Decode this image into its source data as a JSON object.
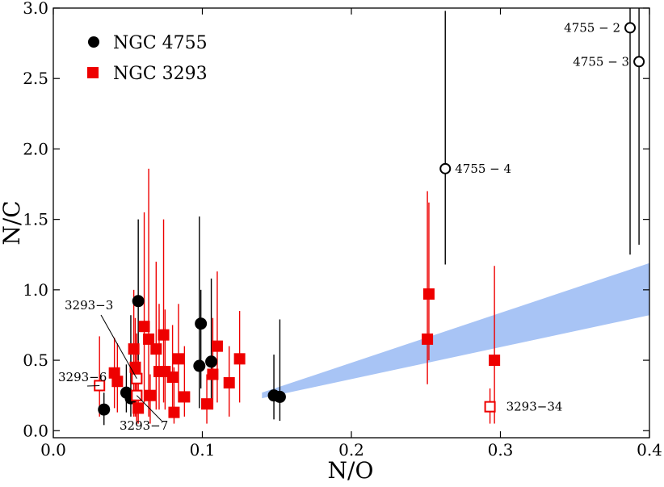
{
  "chart_data": {
    "type": "scatter",
    "xlabel": "N/O",
    "ylabel": "N/C",
    "xlim": [
      0.0,
      0.4
    ],
    "ylim": [
      -0.05,
      3.0
    ],
    "xticks": [
      "0.0",
      "0.1",
      "0.2",
      "0.3",
      "0.4"
    ],
    "yticks": [
      "0.0",
      "0.5",
      "1.0",
      "1.5",
      "2.0",
      "2.5",
      "3.0"
    ],
    "xtick_values": [
      0.0,
      0.1,
      0.2,
      0.3,
      0.4
    ],
    "ytick_values": [
      0.0,
      0.5,
      1.0,
      1.5,
      2.0,
      2.5,
      3.0
    ],
    "grid": false,
    "legend_position": "top-left",
    "band": {
      "color": "#a8c4f5",
      "lower": [
        [
          0.14,
          0.23
        ],
        [
          0.4,
          0.82
        ]
      ],
      "upper": [
        [
          0.14,
          0.27
        ],
        [
          0.4,
          1.19
        ]
      ]
    },
    "series": [
      {
        "name": "NGC 4755",
        "marker": "circle",
        "color": "#000000",
        "points": [
          {
            "x": 0.034,
            "y": 0.15,
            "ylo": 0.04,
            "yhi": 0.27
          },
          {
            "x": 0.049,
            "y": 0.27,
            "ylo": 0.13,
            "yhi": 0.47
          },
          {
            "x": 0.052,
            "y": 0.23,
            "ylo": 0.1,
            "yhi": 0.82
          },
          {
            "x": 0.057,
            "y": 0.92,
            "ylo": 0.35,
            "yhi": 1.5
          },
          {
            "x": 0.098,
            "y": 0.46,
            "ylo": 0.16,
            "yhi": 1.52
          },
          {
            "x": 0.099,
            "y": 0.76,
            "ylo": 0.3,
            "yhi": 1.0
          },
          {
            "x": 0.106,
            "y": 0.49,
            "ylo": 0.22,
            "yhi": 1.08
          },
          {
            "x": 0.148,
            "y": 0.25,
            "ylo": 0.08,
            "yhi": 0.54
          },
          {
            "x": 0.152,
            "y": 0.24,
            "ylo": 0.07,
            "yhi": 0.79
          }
        ]
      },
      {
        "name": "NGC 3293",
        "marker": "square",
        "color": "#ee0000",
        "points": [
          {
            "x": 0.041,
            "y": 0.41,
            "ylo": 0.16,
            "yhi": 0.66
          },
          {
            "x": 0.043,
            "y": 0.35,
            "ylo": 0.13,
            "yhi": 0.62
          },
          {
            "x": 0.054,
            "y": 0.58,
            "ylo": 0.1,
            "yhi": 1.0
          },
          {
            "x": 0.055,
            "y": 0.45,
            "ylo": 0.1,
            "yhi": 0.8
          },
          {
            "x": 0.056,
            "y": 0.37,
            "ylo": 0.1,
            "yhi": 0.69
          },
          {
            "x": 0.057,
            "y": 0.16,
            "ylo": 0.05,
            "yhi": 0.5
          },
          {
            "x": 0.056,
            "y": 0.25,
            "ylo": 0.05,
            "yhi": 0.55
          },
          {
            "x": 0.061,
            "y": 0.74,
            "ylo": 0.2,
            "yhi": 1.55
          },
          {
            "x": 0.064,
            "y": 0.65,
            "ylo": 0.1,
            "yhi": 1.86
          },
          {
            "x": 0.065,
            "y": 0.25,
            "ylo": 0.05,
            "yhi": 0.4
          },
          {
            "x": 0.069,
            "y": 0.58,
            "ylo": 0.15,
            "yhi": 1.2
          },
          {
            "x": 0.071,
            "y": 0.42,
            "ylo": 0.15,
            "yhi": 0.9
          },
          {
            "x": 0.074,
            "y": 0.68,
            "ylo": 0.2,
            "yhi": 1.5
          },
          {
            "x": 0.075,
            "y": 0.42,
            "ylo": 0.15,
            "yhi": 0.86
          },
          {
            "x": 0.08,
            "y": 0.38,
            "ylo": 0.15,
            "yhi": 0.75
          },
          {
            "x": 0.081,
            "y": 0.13,
            "ylo": 0.05,
            "yhi": 0.45
          },
          {
            "x": 0.084,
            "y": 0.51,
            "ylo": 0.2,
            "yhi": 0.9
          },
          {
            "x": 0.088,
            "y": 0.24,
            "ylo": 0.1,
            "yhi": 0.6
          },
          {
            "x": 0.103,
            "y": 0.19,
            "ylo": 0.05,
            "yhi": 0.4
          },
          {
            "x": 0.107,
            "y": 0.4,
            "ylo": 0.15,
            "yhi": 0.8
          },
          {
            "x": 0.11,
            "y": 0.6,
            "ylo": 0.2,
            "yhi": 1.13
          },
          {
            "x": 0.118,
            "y": 0.34,
            "ylo": 0.1,
            "yhi": 0.6
          },
          {
            "x": 0.125,
            "y": 0.51,
            "ylo": 0.2,
            "yhi": 0.85
          },
          {
            "x": 0.251,
            "y": 0.65,
            "ylo": 0.33,
            "yhi": 1.7
          },
          {
            "x": 0.252,
            "y": 0.97,
            "ylo": 0.5,
            "yhi": 1.62
          },
          {
            "x": 0.296,
            "y": 0.5,
            "ylo": 0.05,
            "yhi": 1.17
          }
        ]
      }
    ],
    "outliers": [
      {
        "label": "4755 − 2",
        "series": "NGC 4755",
        "x": 0.387,
        "y": 2.86,
        "ylo": 1.25,
        "yhi": 3.0
      },
      {
        "label": "4755 − 3",
        "series": "NGC 4755",
        "x": 0.393,
        "y": 2.62,
        "ylo": 1.32,
        "yhi": 3.0
      },
      {
        "label": "4755 − 4",
        "series": "NGC 4755",
        "x": 0.263,
        "y": 1.86,
        "ylo": 1.18,
        "yhi": 2.98
      },
      {
        "label": "3293−3",
        "series": "NGC 3293",
        "x": 0.056,
        "y": 0.37,
        "ylo": 0.1,
        "yhi": 0.69
      },
      {
        "label": "3293−6",
        "series": "NGC 3293",
        "x": 0.031,
        "y": 0.32,
        "ylo": 0.1,
        "yhi": 0.67
      },
      {
        "label": "3293−7",
        "series": "NGC 3293",
        "x": 0.056,
        "y": 0.25,
        "ylo": 0.05,
        "yhi": 0.55
      },
      {
        "label": "3293−34",
        "series": "NGC 3293",
        "x": 0.293,
        "y": 0.17,
        "ylo": 0.05,
        "yhi": 0.3
      }
    ]
  }
}
